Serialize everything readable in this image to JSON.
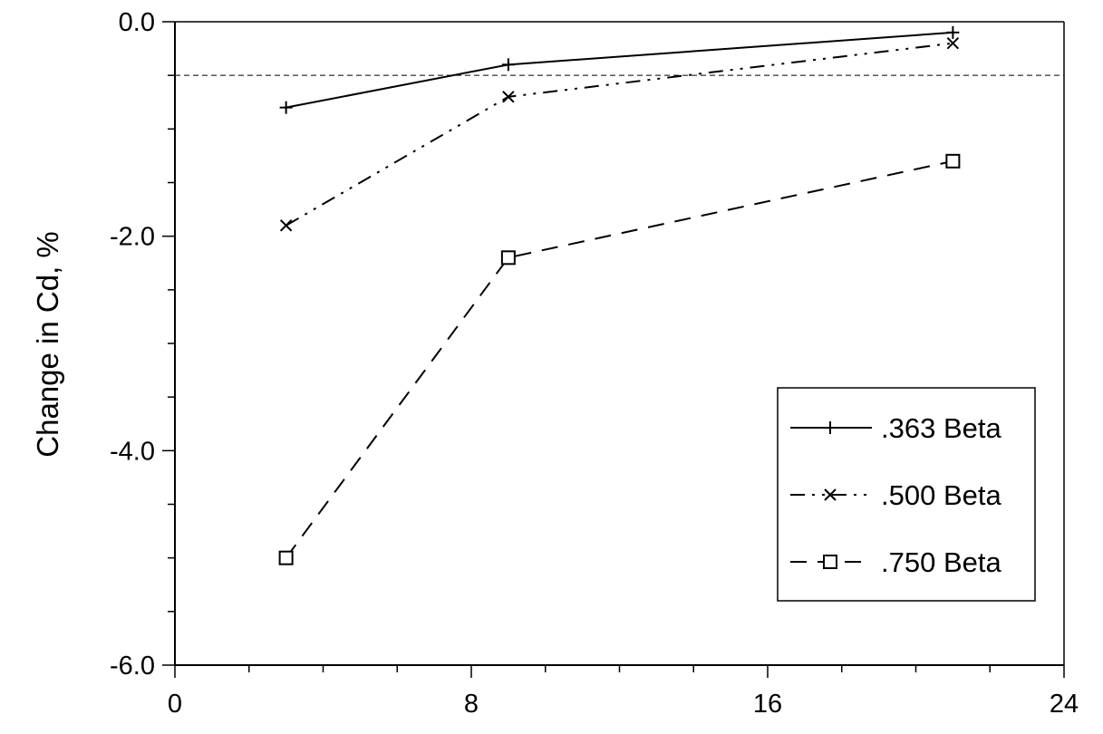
{
  "chart_data": {
    "type": "line",
    "title": "",
    "xlabel": "",
    "ylabel": "Change in Cd, %",
    "xlim": [
      0,
      24
    ],
    "ylim": [
      -6,
      0
    ],
    "x_ticks": [
      0,
      8,
      16,
      24
    ],
    "x_tick_labels": [
      "0",
      "8",
      "16",
      "24"
    ],
    "y_ticks": [
      0,
      -2,
      -4,
      -6
    ],
    "y_tick_labels": [
      "0.0",
      "-2.0",
      "-4.0",
      "-6.0"
    ],
    "reference_line": {
      "y": -0.5,
      "style": "dashed"
    },
    "legend_placement": "lower-right",
    "grid": false,
    "series": [
      {
        "name": ".363 Beta",
        "marker": "plus",
        "line_style": "solid",
        "x": [
          3,
          9,
          21
        ],
        "y": [
          -0.8,
          -0.4,
          -0.1
        ]
      },
      {
        "name": ".500 Beta",
        "marker": "x",
        "line_style": "dash-dot-dot",
        "x": [
          3,
          9,
          21
        ],
        "y": [
          -1.9,
          -0.7,
          -0.2
        ]
      },
      {
        "name": ".750 Beta",
        "marker": "square",
        "line_style": "dashed",
        "x": [
          3,
          9,
          21
        ],
        "y": [
          -5.0,
          -2.2,
          -1.3
        ]
      }
    ]
  }
}
